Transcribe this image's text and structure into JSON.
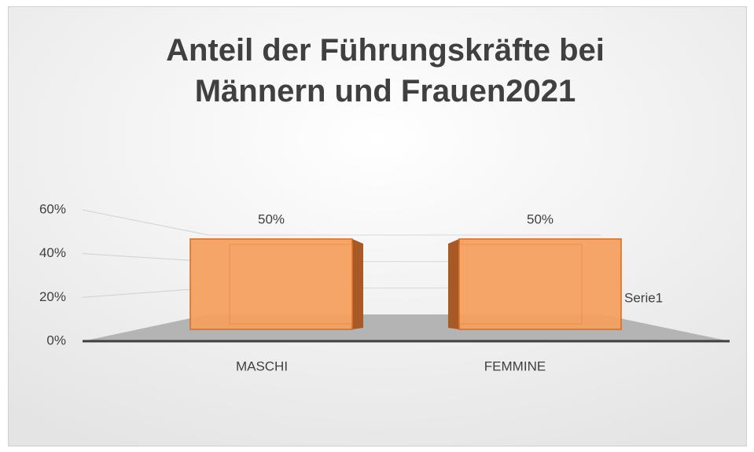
{
  "chart_data": {
    "type": "bar3d",
    "title": "Anteil der Führungskräfte bei Männern und Frauen2021",
    "categories": [
      "MASCHI",
      "FEMMINE"
    ],
    "series": [
      {
        "name": "Serie1",
        "color": "#f4a060",
        "values": [
          50,
          50
        ],
        "value_labels": [
          "50%",
          "50%"
        ]
      }
    ],
    "ylim": [
      0,
      60
    ],
    "yticks": [
      {
        "value": 0,
        "label": "0%"
      },
      {
        "value": 20,
        "label": "20%"
      },
      {
        "value": 40,
        "label": "40%"
      },
      {
        "value": 60,
        "label": "60%"
      }
    ],
    "grid": true
  }
}
